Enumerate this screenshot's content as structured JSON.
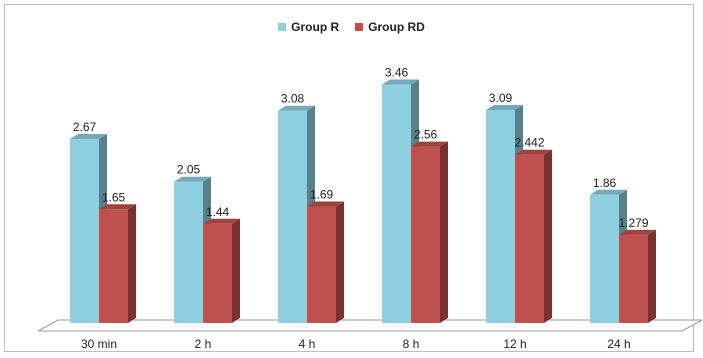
{
  "chart_data": {
    "type": "bar",
    "categories": [
      "30 min",
      "2 h",
      "4 h",
      "8 h",
      "12 h",
      "24 h"
    ],
    "series": [
      {
        "name": "Group R",
        "values": [
          2.67,
          2.05,
          3.08,
          3.46,
          3.09,
          1.86
        ],
        "labels": [
          "2.67",
          "2.05",
          "3.08",
          "3.46",
          "3.09",
          "1.86"
        ],
        "color": "#8ecfe0"
      },
      {
        "name": "Group RD",
        "values": [
          1.65,
          1.44,
          1.69,
          2.56,
          2.442,
          1.279
        ],
        "labels": [
          "1.65",
          "1.44",
          "1.69",
          "2.56",
          "2.442",
          "1.279"
        ],
        "color": "#c0504d"
      }
    ],
    "title": "",
    "xlabel": "",
    "ylabel": "",
    "ylim": [
      0,
      3.7
    ],
    "grid": false,
    "legend": "top-center",
    "style": "3d-column"
  }
}
